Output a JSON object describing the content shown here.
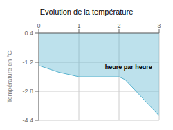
{
  "chart_data": {
    "type": "area",
    "title": "Evolution de la température",
    "ylabel": "Température en °C",
    "annotations": [
      {
        "text": "heure par heure",
        "x": 1.65,
        "y": -1.45
      }
    ],
    "x": [
      0,
      0.5,
      1.0,
      2.0,
      2.15,
      3.0
    ],
    "values": [
      -1.38,
      -1.75,
      -2.0,
      -2.0,
      -2.15,
      -4.15
    ],
    "color": "#5ab4d0",
    "xlim": [
      0,
      3
    ],
    "ylim": [
      -4.4,
      0.4
    ],
    "xticks": [
      0,
      1,
      2,
      3
    ],
    "yticks": [
      0.4,
      -1.2,
      -2.8,
      -4.4
    ],
    "grid": true
  }
}
